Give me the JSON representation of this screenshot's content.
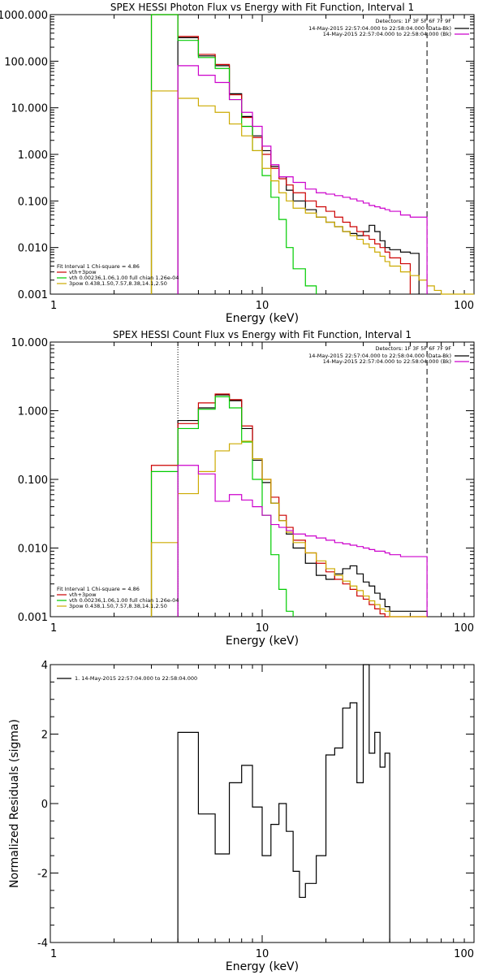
{
  "chart_data": [
    {
      "type": "line",
      "step": true,
      "title": "SPEX HESSI Photon Flux vs Energy with Fit Function, Interval 1",
      "xlabel": "Energy (keV)",
      "ylabel": "",
      "x_scale": "log",
      "y_scale": "log",
      "xlim": [
        1,
        100
      ],
      "ylim": [
        0.001,
        1000
      ],
      "x_ticks": [
        "1",
        "10",
        "100"
      ],
      "y_ticks": [
        "0.001",
        "0.010",
        "0.100",
        "1.000",
        "10.000",
        "100.000",
        "1000.000"
      ],
      "y_tick_values": [
        0.001,
        0.01,
        0.1,
        1,
        10,
        100,
        1000
      ],
      "dotted_line_x": null,
      "dashed_line_x": 60,
      "legend_top": {
        "header": "Detectors: 1F 3F 5F 6F 7F 9F",
        "entries": [
          {
            "label": "14-May-2015 22:57:04.000 to 22:58:04.000 (Data-Bk)",
            "color": "#000000"
          },
          {
            "label": "14-May-2015 22:57:04.000 to 22:58:04.000 (Bk)",
            "color": "#cc00cc"
          }
        ]
      },
      "legend_bottom": {
        "header": "Fit Interval 1    Chi-square = 4.86",
        "entries": [
          {
            "label": "vth+3pow",
            "color": "#cc0000"
          },
          {
            "label": "vth 0.00236,1.06,1.00  full chian 1.26e-04",
            "color": "#00cc00"
          },
          {
            "label": "3pow 0.438,1.50,7.57,8.38,14.1,2.50",
            "color": "#ccaa00"
          }
        ]
      },
      "edges": [
        3.0,
        4.0,
        5.0,
        6.0,
        7.0,
        8.0,
        9.0,
        10.0,
        11.0,
        12.0,
        13.0,
        14.0,
        16.0,
        18.0,
        20.0,
        22.0,
        24.0,
        26.0,
        28.0,
        30.0,
        32.0,
        34.0,
        36.0,
        38.0,
        40.0,
        45.0,
        50.0,
        55.0,
        60.0,
        65.0,
        70.0,
        80.0,
        90.0,
        100.0
      ],
      "series": [
        {
          "name": "14-May-2015 22:57:04.000 to 22:58:04.000 (Data-Bk)",
          "color": "#000000",
          "start_index": 1,
          "values": [
            320,
            130,
            80,
            20,
            6.5,
            2.5,
            1.2,
            0.55,
            0.33,
            0.17,
            0.1,
            0.065,
            0.045,
            0.035,
            0.028,
            0.022,
            0.02,
            0.018,
            0.022,
            0.03,
            0.022,
            0.014,
            0.01,
            0.009,
            0.008,
            0.0075
          ]
        },
        {
          "name": "vth+3pow",
          "color": "#cc0000",
          "start_index": 0,
          "values": [
            1000,
            340,
            140,
            85,
            19,
            6.2,
            2.3,
            1.0,
            0.5,
            0.3,
            0.22,
            0.15,
            0.1,
            0.075,
            0.06,
            0.045,
            0.035,
            0.028,
            0.022,
            0.018,
            0.015,
            0.012,
            0.01,
            0.008,
            0.006,
            0.0045
          ]
        },
        {
          "name": "vth 0.00236,1.06,1.00  full chian 1.26e-04",
          "color": "#00cc00",
          "start_index": 0,
          "values": [
            1000,
            280,
            120,
            70,
            15,
            4.0,
            1.2,
            0.35,
            0.12,
            0.04,
            0.01,
            0.0035,
            0.0015
          ]
        },
        {
          "name": "3pow 0.438,1.50,7.57,8.38,14.1,2.50",
          "color": "#ccaa00",
          "start_index": 0,
          "values": [
            23,
            16,
            11,
            8,
            4.5,
            2.5,
            1.2,
            0.5,
            0.27,
            0.15,
            0.1,
            0.07,
            0.055,
            0.045,
            0.035,
            0.028,
            0.022,
            0.018,
            0.015,
            0.012,
            0.01,
            0.008,
            0.0065,
            0.005,
            0.004,
            0.003,
            0.0025,
            0.002,
            0.0015,
            0.0012,
            0.001,
            0.0008,
            0.0007
          ]
        },
        {
          "name": "14-May-2015 22:57:04.000 to 22:58:04.000 (Bk)",
          "color": "#cc00cc",
          "start_index": 1,
          "values": [
            80,
            50,
            35,
            15,
            8,
            4,
            1.5,
            0.6,
            0.33,
            0.33,
            0.25,
            0.18,
            0.15,
            0.14,
            0.13,
            0.12,
            0.11,
            0.1,
            0.09,
            0.08,
            0.075,
            0.07,
            0.065,
            0.06,
            0.05,
            0.045,
            0.045
          ]
        }
      ]
    },
    {
      "type": "line",
      "step": true,
      "title": "SPEX HESSI Count Flux vs Energy with Fit Function, Interval 1",
      "xlabel": "Energy (keV)",
      "ylabel": "",
      "x_scale": "log",
      "y_scale": "log",
      "xlim": [
        1,
        100
      ],
      "ylim": [
        0.001,
        10
      ],
      "x_ticks": [
        "1",
        "10",
        "100"
      ],
      "y_ticks": [
        "0.001",
        "0.010",
        "0.100",
        "1.000",
        "10.000"
      ],
      "y_tick_values": [
        0.001,
        0.01,
        0.1,
        1,
        10
      ],
      "dotted_line_x": 4.0,
      "dashed_line_x": 60,
      "legend_top": {
        "header": "Detectors: 1F 3F 5F 6F 7F 9F",
        "entries": [
          {
            "label": "14-May-2015 22:57:04.000 to 22:58:04.000 (Data-Bk)",
            "color": "#000000"
          },
          {
            "label": "14-May-2015 22:57:04.000 to 22:58:04.000 (Bk)",
            "color": "#cc00cc"
          }
        ]
      },
      "legend_bottom": {
        "header": "Fit Interval 1    Chi-square = 4.86",
        "entries": [
          {
            "label": "vth+3pow",
            "color": "#cc0000"
          },
          {
            "label": "vth 0.00236,1.06,1.00  full chian 1.26e-04",
            "color": "#00cc00"
          },
          {
            "label": "3pow 0.438,1.50,7.57,8.38,14.1,2.50",
            "color": "#ccaa00"
          }
        ]
      },
      "edges": [
        3.0,
        4.0,
        5.0,
        6.0,
        7.0,
        8.0,
        9.0,
        10.0,
        11.0,
        12.0,
        13.0,
        14.0,
        16.0,
        18.0,
        20.0,
        22.0,
        24.0,
        26.0,
        28.0,
        30.0,
        32.0,
        34.0,
        36.0,
        38.0,
        40.0,
        45.0,
        50.0,
        55.0,
        60.0
      ],
      "series": [
        {
          "name": "14-May-2015 22:57:04.000 to 22:58:04.000 (Data-Bk)",
          "color": "#000000",
          "start_index": 1,
          "values": [
            0.72,
            1.1,
            1.7,
            1.4,
            0.55,
            0.19,
            0.09,
            0.045,
            0.025,
            0.016,
            0.01,
            0.006,
            0.004,
            0.0035,
            0.0042,
            0.005,
            0.0055,
            0.0042,
            0.0032,
            0.0028,
            0.0022,
            0.0018,
            0.0014,
            0.0012,
            0.0012,
            0.0012,
            0.0012
          ]
        },
        {
          "name": "vth+3pow",
          "color": "#cc0000",
          "start_index": 0,
          "values": [
            0.16,
            0.65,
            1.3,
            1.75,
            1.45,
            0.6,
            0.2,
            0.1,
            0.055,
            0.03,
            0.02,
            0.013,
            0.0085,
            0.006,
            0.0045,
            0.0035,
            0.003,
            0.0025,
            0.002,
            0.0018,
            0.0015,
            0.0013,
            0.0011,
            0.001,
            0.001,
            0.001,
            0.001,
            0.001
          ]
        },
        {
          "name": "vth 0.00236,1.06,1.00  full chian 1.26e-04",
          "color": "#00cc00",
          "start_index": 0,
          "values": [
            0.13,
            0.55,
            1.05,
            1.6,
            1.1,
            0.35,
            0.1,
            0.03,
            0.008,
            0.0025,
            0.0012
          ]
        },
        {
          "name": "3pow 0.438,1.50,7.57,8.38,14.1,2.50",
          "color": "#ccaa00",
          "start_index": 0,
          "values": [
            0.012,
            0.062,
            0.13,
            0.26,
            0.33,
            0.36,
            0.2,
            0.1,
            0.045,
            0.025,
            0.017,
            0.012,
            0.0085,
            0.0065,
            0.005,
            0.004,
            0.0033,
            0.0028,
            0.0024,
            0.002,
            0.0017,
            0.0015,
            0.0013,
            0.0012,
            0.001,
            0.001,
            0.001,
            0.001
          ]
        },
        {
          "name": "14-May-2015 22:57:04.000 to 22:58:04.000 (Bk)",
          "color": "#cc00cc",
          "start_index": 1,
          "values": [
            0.16,
            0.12,
            0.048,
            0.06,
            0.05,
            0.04,
            0.03,
            0.022,
            0.02,
            0.018,
            0.016,
            0.015,
            0.014,
            0.013,
            0.012,
            0.0115,
            0.011,
            0.0105,
            0.01,
            0.0095,
            0.009,
            0.009,
            0.0085,
            0.008,
            0.0075,
            0.0075,
            0.0075
          ]
        }
      ]
    },
    {
      "type": "line",
      "step": true,
      "title": "",
      "xlabel": "Energy (keV)",
      "ylabel": "Normalized Residuals (sigma)",
      "x_scale": "log",
      "y_scale": "linear",
      "xlim": [
        1,
        100
      ],
      "ylim": [
        -4,
        4
      ],
      "x_ticks": [
        "1",
        "10",
        "100"
      ],
      "y_ticks": [
        "-4",
        "-2",
        "0",
        "2",
        "4"
      ],
      "y_tick_values": [
        -4,
        -2,
        0,
        2,
        4
      ],
      "legend_top": {
        "header": "",
        "entries": [
          {
            "label": "1. 14-May-2015 22:57:04.000 to 22:58:04.000",
            "color": "#000000"
          }
        ]
      },
      "edges": [
        4.0,
        5.0,
        6.0,
        7.0,
        8.0,
        9.0,
        10.0,
        11.0,
        12.0,
        13.0,
        14.0,
        15.0,
        16.0,
        18.0,
        20.0,
        22.0,
        24.0,
        26.0,
        28.0,
        30.0,
        32.0,
        34.0,
        36.0,
        38.0,
        40.0,
        45.0,
        50.0,
        55.0,
        60.0
      ],
      "series": [
        {
          "name": "1. 14-May-2015 22:57:04.000 to 22:58:04.000",
          "color": "#000000",
          "start_index": 0,
          "values": [
            2.05,
            -0.3,
            -1.45,
            0.6,
            1.1,
            -0.1,
            -1.5,
            -0.6,
            0.0,
            -0.8,
            -1.95,
            -2.7,
            -2.3,
            -1.5,
            1.4,
            1.6,
            2.75,
            2.9,
            0.6,
            4.1,
            1.45,
            2.05,
            1.05,
            1.45
          ]
        }
      ]
    }
  ]
}
